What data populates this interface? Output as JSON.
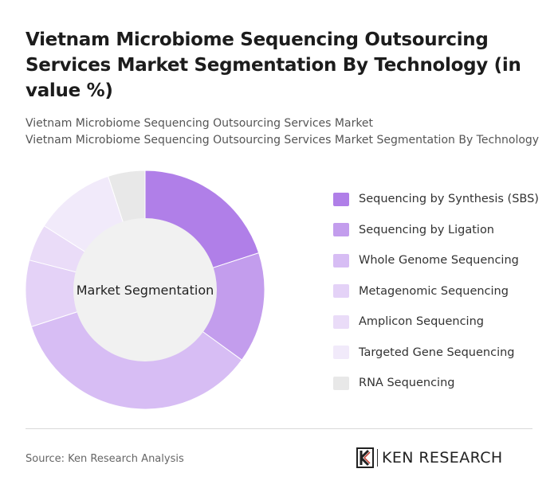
{
  "title": "Vietnam Microbiome Sequencing Outsourcing Services Market Segmentation By Technology (in value %)",
  "subtitle_line1": "Vietnam Microbiome Sequencing Outsourcing Services Market",
  "subtitle_line2": "Vietnam Microbiome Sequencing Outsourcing Services Market Segmentation By Technology",
  "source": "Source: Ken Research Analysis",
  "logo_text": "KEN RESEARCH",
  "chart_data": {
    "type": "pie",
    "variant": "donut",
    "center_label": "Market Segmentation",
    "categories": [
      "Sequencing by Synthesis (SBS)",
      "Sequencing by Ligation",
      "Whole Genome Sequencing",
      "Metagenomic Sequencing",
      "Amplicon Sequencing",
      "Targeted Gene Sequencing",
      "RNA Sequencing"
    ],
    "values": [
      20,
      15,
      35,
      9,
      5,
      11,
      5
    ],
    "colors": [
      "#b07fe8",
      "#c39ded",
      "#d7bdf4",
      "#e4d2f7",
      "#eadcf8",
      "#f1eafa",
      "#e8e8e8"
    ],
    "legend_position": "right"
  }
}
